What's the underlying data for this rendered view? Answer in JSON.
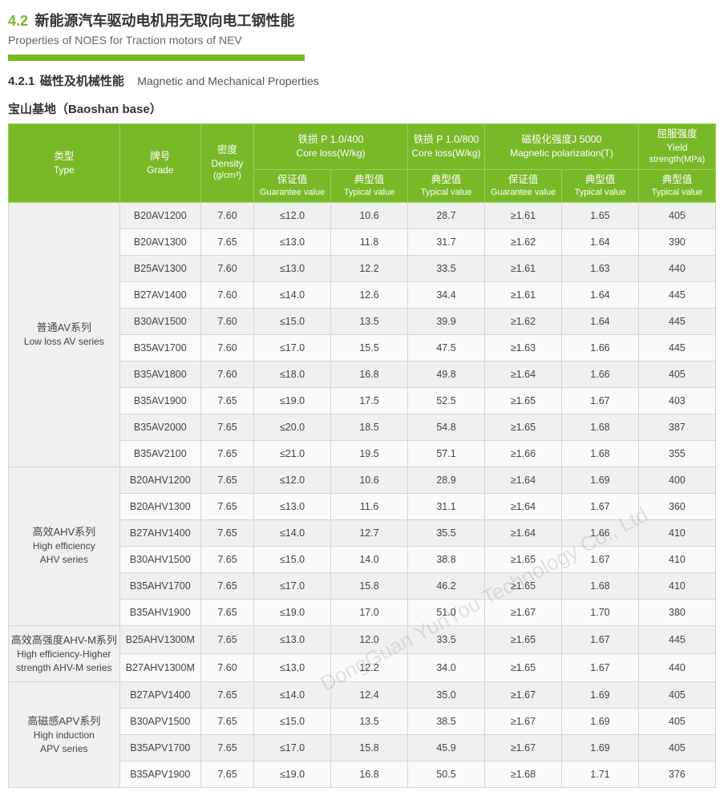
{
  "header": {
    "section_num": "4.2",
    "title_cn": "新能源汽车驱动电机用无取向电工钢性能",
    "title_en": "Properties of NOES for Traction motors of NEV"
  },
  "subheader": {
    "num": "4.2.1",
    "cn": "磁性及机械性能",
    "en": "Magnetic and Mechanical Properties"
  },
  "base_title": "宝山基地（Baoshan base）",
  "watermark": "DongGuan YunYou Technology Co., Ltd",
  "columns": {
    "type": {
      "cn": "类型",
      "en": "Type"
    },
    "grade": {
      "cn": "牌号",
      "en": "Grade"
    },
    "density": {
      "cn": "密度",
      "en": "Density",
      "unit": "(g/cm³)"
    },
    "coreloss400": {
      "cn": "铁损 P 1.0/400",
      "en": "Core loss(W/kg)"
    },
    "coreloss800": {
      "cn": "铁损 P 1.0/800",
      "en": "Core loss(W/kg)"
    },
    "magpol": {
      "cn": "磁极化强度J 5000",
      "en": "Magnetic polarization(T)"
    },
    "yield": {
      "cn": "屈服强度",
      "en": "Yield",
      "en2": "strength(MPa)"
    },
    "guarantee": {
      "cn": "保证值",
      "en": "Guarantee value"
    },
    "typical": {
      "cn": "典型值",
      "en": "Typical value"
    }
  },
  "groups": [
    {
      "type_cn": "普通AV系列",
      "type_en": "Low loss AV series",
      "rows": [
        {
          "grade": "B20AV1200",
          "density": "7.60",
          "cl400g": "≤12.0",
          "cl400t": "10.6",
          "cl800t": "28.7",
          "mpg": "≥1.61",
          "mpt": "1.65",
          "ys": "405"
        },
        {
          "grade": "B20AV1300",
          "density": "7.65",
          "cl400g": "≤13.0",
          "cl400t": "11.8",
          "cl800t": "31.7",
          "mpg": "≥1.62",
          "mpt": "1.64",
          "ys": "390"
        },
        {
          "grade": "B25AV1300",
          "density": "7.60",
          "cl400g": "≤13.0",
          "cl400t": "12.2",
          "cl800t": "33.5",
          "mpg": "≥1.61",
          "mpt": "1.63",
          "ys": "440"
        },
        {
          "grade": "B27AV1400",
          "density": "7.60",
          "cl400g": "≤14.0",
          "cl400t": "12.6",
          "cl800t": "34.4",
          "mpg": "≥1.61",
          "mpt": "1.64",
          "ys": "445"
        },
        {
          "grade": "B30AV1500",
          "density": "7.60",
          "cl400g": "≤15.0",
          "cl400t": "13.5",
          "cl800t": "39.9",
          "mpg": "≥1.62",
          "mpt": "1.64",
          "ys": "445"
        },
        {
          "grade": "B35AV1700",
          "density": "7.60",
          "cl400g": "≤17.0",
          "cl400t": "15.5",
          "cl800t": "47.5",
          "mpg": "≥1.63",
          "mpt": "1.66",
          "ys": "445"
        },
        {
          "grade": "B35AV1800",
          "density": "7.60",
          "cl400g": "≤18.0",
          "cl400t": "16.8",
          "cl800t": "49.8",
          "mpg": "≥1.64",
          "mpt": "1.66",
          "ys": "405"
        },
        {
          "grade": "B35AV1900",
          "density": "7.65",
          "cl400g": "≤19.0",
          "cl400t": "17.5",
          "cl800t": "52.5",
          "mpg": "≥1.65",
          "mpt": "1.67",
          "ys": "403"
        },
        {
          "grade": "B35AV2000",
          "density": "7.65",
          "cl400g": "≤20.0",
          "cl400t": "18.5",
          "cl800t": "54.8",
          "mpg": "≥1.65",
          "mpt": "1.68",
          "ys": "387"
        },
        {
          "grade": "B35AV2100",
          "density": "7.65",
          "cl400g": "≤21.0",
          "cl400t": "19.5",
          "cl800t": "57.1",
          "mpg": "≥1.66",
          "mpt": "1.68",
          "ys": "355"
        }
      ]
    },
    {
      "type_cn": "高效AHV系列",
      "type_en": "High efficiency\nAHV series",
      "rows": [
        {
          "grade": "B20AHV1200",
          "density": "7.65",
          "cl400g": "≤12.0",
          "cl400t": "10.6",
          "cl800t": "28.9",
          "mpg": "≥1.64",
          "mpt": "1.69",
          "ys": "400"
        },
        {
          "grade": "B20AHV1300",
          "density": "7.65",
          "cl400g": "≤13.0",
          "cl400t": "11.6",
          "cl800t": "31.1",
          "mpg": "≥1.64",
          "mpt": "1.67",
          "ys": "360"
        },
        {
          "grade": "B27AHV1400",
          "density": "7.65",
          "cl400g": "≤14.0",
          "cl400t": "12.7",
          "cl800t": "35.5",
          "mpg": "≥1.64",
          "mpt": "1.66",
          "ys": "410"
        },
        {
          "grade": "B30AHV1500",
          "density": "7.65",
          "cl400g": "≤15.0",
          "cl400t": "14.0",
          "cl800t": "38.8",
          "mpg": "≥1.65",
          "mpt": "1.67",
          "ys": "410"
        },
        {
          "grade": "B35AHV1700",
          "density": "7.65",
          "cl400g": "≤17.0",
          "cl400t": "15.8",
          "cl800t": "46.2",
          "mpg": "≥1.65",
          "mpt": "1.68",
          "ys": "410"
        },
        {
          "grade": "B35AHV1900",
          "density": "7.65",
          "cl400g": "≤19.0",
          "cl400t": "17.0",
          "cl800t": "51.0",
          "mpg": "≥1.67",
          "mpt": "1.70",
          "ys": "380"
        }
      ]
    },
    {
      "type_cn": "高效高强度AHV-M系列",
      "type_en": "High efficiency-Higher\nstrength AHV-M series",
      "rows": [
        {
          "grade": "B25AHV1300M",
          "density": "7.65",
          "cl400g": "≤13.0",
          "cl400t": "12.0",
          "cl800t": "33.5",
          "mpg": "≥1.65",
          "mpt": "1.67",
          "ys": "445"
        },
        {
          "grade": "B27AHV1300M",
          "density": "7.60",
          "cl400g": "≤13.0",
          "cl400t": "12.2",
          "cl800t": "34.0",
          "mpg": "≥1.65",
          "mpt": "1.67",
          "ys": "440"
        }
      ]
    },
    {
      "type_cn": "高磁感APV系列",
      "type_en": "High induction\nAPV series",
      "rows": [
        {
          "grade": "B27APV1400",
          "density": "7.65",
          "cl400g": "≤14.0",
          "cl400t": "12.4",
          "cl800t": "35.0",
          "mpg": "≥1.67",
          "mpt": "1.69",
          "ys": "405"
        },
        {
          "grade": "B30APV1500",
          "density": "7.65",
          "cl400g": "≤15.0",
          "cl400t": "13.5",
          "cl800t": "38.5",
          "mpg": "≥1.67",
          "mpt": "1.69",
          "ys": "405"
        },
        {
          "grade": "B35APV1700",
          "density": "7.65",
          "cl400g": "≤17.0",
          "cl400t": "15.8",
          "cl800t": "45.9",
          "mpg": "≥1.67",
          "mpt": "1.69",
          "ys": "405"
        },
        {
          "grade": "B35APV1900",
          "density": "7.65",
          "cl400g": "≤19.0",
          "cl400t": "16.8",
          "cl800t": "50.5",
          "mpg": "≥1.68",
          "mpt": "1.71",
          "ys": "376"
        }
      ]
    }
  ]
}
